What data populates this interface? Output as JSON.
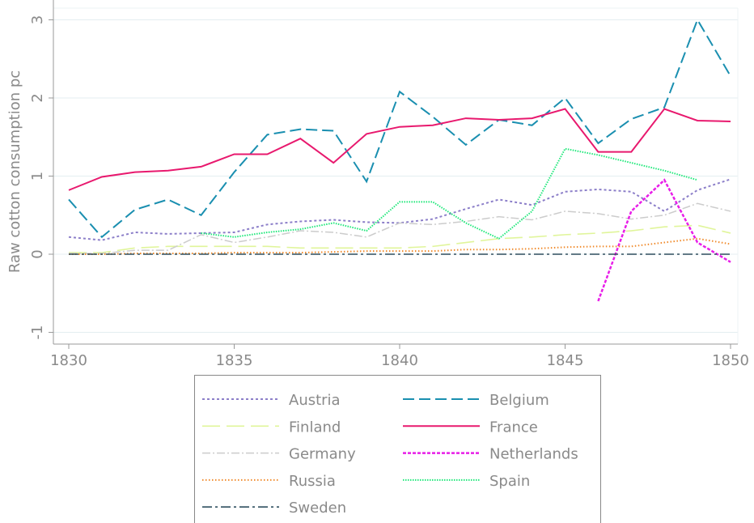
{
  "chart_data": {
    "type": "line",
    "ylabel": "Raw cotton consumption pc",
    "x": [
      1830,
      1831,
      1832,
      1833,
      1834,
      1835,
      1836,
      1837,
      1838,
      1839,
      1840,
      1841,
      1842,
      1843,
      1844,
      1845,
      1846,
      1847,
      1848,
      1849,
      1850
    ],
    "xlim": [
      1830,
      1850
    ],
    "xticks": [
      1830,
      1835,
      1840,
      1845,
      1850
    ],
    "ylim": [
      -1.15,
      3.15
    ],
    "yticks": [
      -1,
      0,
      1,
      2,
      3
    ],
    "grid": true,
    "legend": "bottom",
    "series": [
      {
        "name": "Austria",
        "color": "#8c7fc9",
        "values": [
          0.22,
          0.18,
          0.28,
          0.26,
          0.27,
          0.28,
          0.38,
          0.42,
          0.44,
          0.41,
          0.4,
          0.45,
          0.58,
          0.7,
          0.63,
          0.8,
          0.83,
          0.8,
          0.55,
          0.82,
          0.96
        ]
      },
      {
        "name": "Belgium",
        "color": "#1a8fb0",
        "values": [
          0.7,
          0.22,
          0.57,
          0.7,
          0.5,
          1.05,
          1.53,
          1.6,
          1.58,
          0.93,
          2.08,
          1.76,
          1.4,
          1.72,
          1.65,
          2.0,
          1.42,
          1.73,
          1.88,
          3.0,
          2.28
        ]
      },
      {
        "name": "Finland",
        "color": "#e0f59a",
        "values": [
          0.02,
          0.02,
          0.08,
          0.1,
          0.1,
          0.1,
          0.1,
          0.08,
          0.08,
          0.08,
          0.08,
          0.1,
          0.15,
          0.2,
          0.22,
          0.25,
          0.27,
          0.3,
          0.35,
          0.37,
          0.27
        ]
      },
      {
        "name": "France",
        "color": "#e8196e",
        "values": [
          0.82,
          0.99,
          1.05,
          1.07,
          1.12,
          1.28,
          1.28,
          1.48,
          1.17,
          1.54,
          1.63,
          1.65,
          1.74,
          1.72,
          1.74,
          1.86,
          1.31,
          1.31,
          1.86,
          1.71,
          1.7
        ]
      },
      {
        "name": "Germany",
        "color": "#cccccc",
        "values": [
          0.01,
          0.01,
          0.05,
          0.05,
          0.25,
          0.15,
          0.22,
          0.3,
          0.28,
          0.22,
          0.4,
          0.38,
          0.42,
          0.48,
          0.44,
          0.55,
          0.52,
          0.45,
          0.5,
          0.65,
          0.55
        ]
      },
      {
        "name": "Netherlands",
        "color": "#e81ee8",
        "values": [
          null,
          null,
          null,
          null,
          null,
          null,
          null,
          null,
          null,
          null,
          null,
          null,
          null,
          null,
          null,
          null,
          -0.6,
          0.55,
          0.95,
          0.15,
          -0.1
        ]
      },
      {
        "name": "Russia",
        "color": "#f08a2b",
        "values": [
          0,
          0,
          0.01,
          0.01,
          0.01,
          0.02,
          0.02,
          0.02,
          0.03,
          0.04,
          0.04,
          0.04,
          0.06,
          0.06,
          0.07,
          0.09,
          0.1,
          0.1,
          0.15,
          0.2,
          0.13
        ]
      },
      {
        "name": "Spain",
        "color": "#1fe87a",
        "values": [
          null,
          null,
          null,
          null,
          0.27,
          0.22,
          0.28,
          0.32,
          0.4,
          0.3,
          0.67,
          0.67,
          0.4,
          0.2,
          0.55,
          1.35,
          1.27,
          1.17,
          1.07,
          0.95,
          null
        ]
      },
      {
        "name": "Sweden",
        "color": "#2f4f5f",
        "values": [
          0,
          0,
          0,
          0,
          0,
          0,
          0,
          0,
          0,
          0,
          0,
          0,
          0,
          0,
          0,
          0,
          0,
          0,
          0,
          0,
          0
        ]
      }
    ]
  }
}
